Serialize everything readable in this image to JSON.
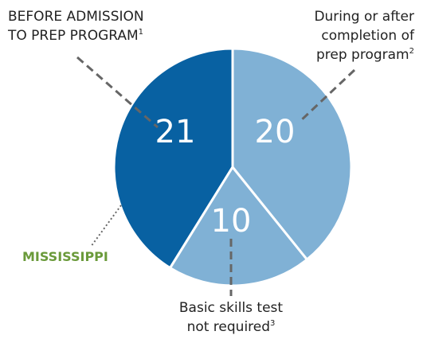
{
  "chart_data": {
    "type": "pie",
    "categories": [
      [
        "During or after",
        "completion of",
        "prep program"
      ],
      [
        "Basic skills test",
        "not required"
      ],
      [
        "BEFORE ADMISSION",
        "TO PREP PROGRAM"
      ]
    ],
    "footnotes": [
      "2",
      "3",
      "1"
    ],
    "values": [
      20,
      10,
      21
    ],
    "colors": [
      "#80b1d5",
      "#80b1d5",
      "#0861a2"
    ],
    "annotation": "MISSISSIPPI",
    "annotation_color": "#6a9a3a"
  }
}
